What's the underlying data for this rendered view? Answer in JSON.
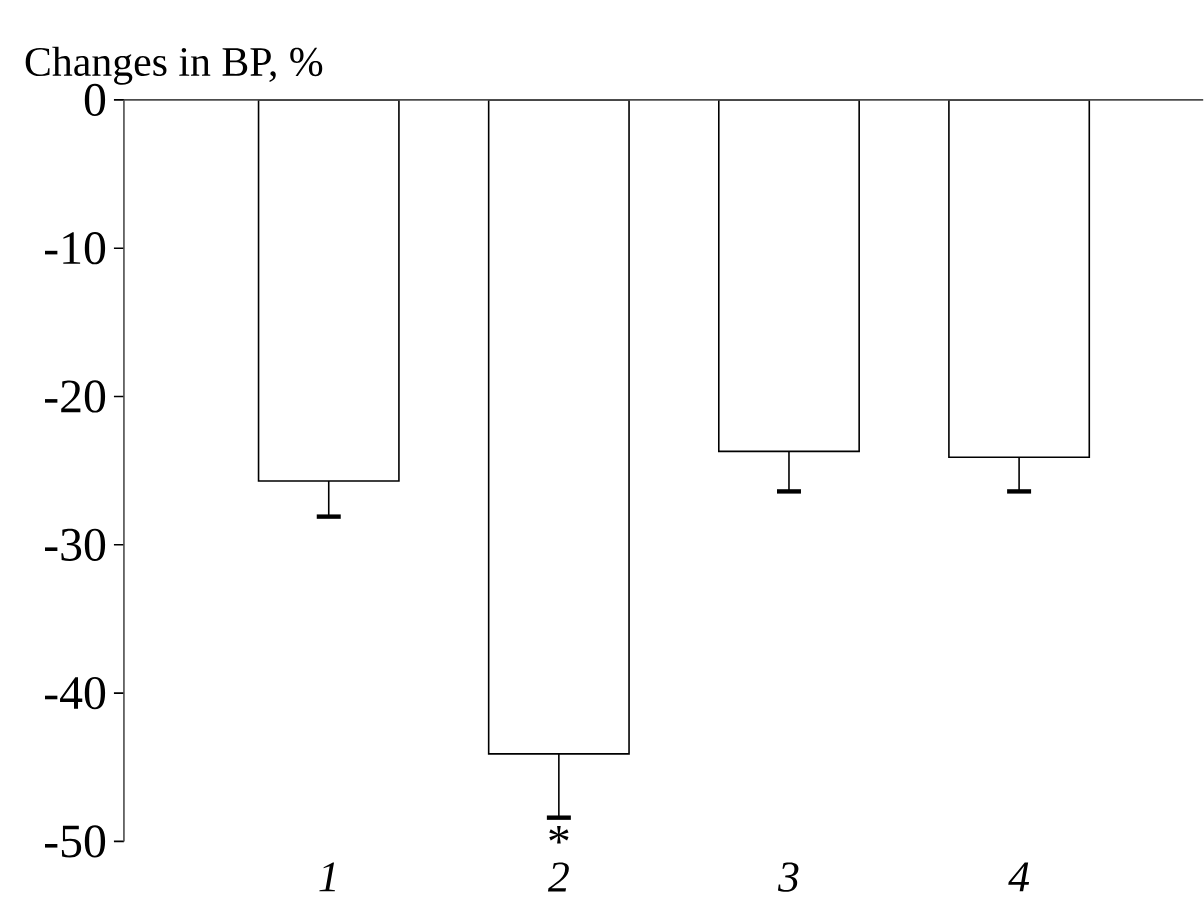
{
  "chart_data": {
    "type": "bar",
    "ylabel": "Changes in BP, %",
    "categories": [
      "1",
      "2",
      "3",
      "4"
    ],
    "values": [
      -25.7,
      -44.1,
      -23.7,
      -24.1
    ],
    "errors": [
      [
        -28.1,
        -25.7
      ],
      [
        -48.4,
        -44.1
      ],
      [
        -26.4,
        -23.7
      ],
      [
        -26.4,
        -24.1
      ]
    ],
    "color": "#ffffff",
    "ylim": [
      -50,
      0
    ],
    "yticks": [
      -50,
      -40,
      -30,
      -20,
      -10,
      0
    ],
    "grid": false,
    "annotations": [
      "*"
    ]
  }
}
